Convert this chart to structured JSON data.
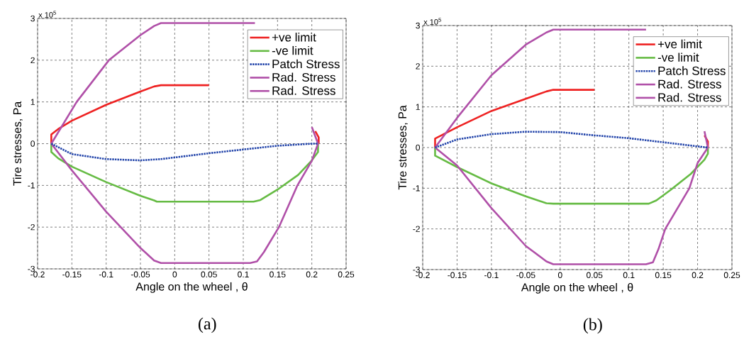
{
  "chart_data": [
    {
      "type": "line",
      "xlabel": "Angle on the wheel , θ",
      "ylabel": "Tire stresses, Pa",
      "xlim": [
        -0.2,
        0.25
      ],
      "ylim": [
        -3,
        3
      ],
      "xticks": [
        -0.2,
        -0.15,
        -0.1,
        -0.05,
        0,
        0.05,
        0.1,
        0.15,
        0.2,
        0.25
      ],
      "yticks": [
        -3,
        -2,
        -1,
        0,
        1,
        2,
        3
      ],
      "grid": true,
      "legend": "top right",
      "annotations": [
        "x 10$^{5}$",
        "(a)"
      ],
      "series": [
        {
          "name": "+ve limit",
          "color": "#ee2222",
          "line_style": "solid",
          "x": [
            -0.18,
            -0.18,
            -0.17,
            -0.15,
            -0.1,
            -0.05,
            -0.03,
            -0.02,
            0.05,
            0.12,
            0.205,
            0.21,
            0.21
          ],
          "values": [
            0,
            0.22,
            0.35,
            0.55,
            0.93,
            1.25,
            1.37,
            1.4,
            1.4,
            null,
            0.3,
            0.15,
            0
          ]
        },
        {
          "name": "-ve limit",
          "color": "#66bb44",
          "line_style": "solid",
          "x": [
            -0.18,
            -0.18,
            -0.17,
            -0.15,
            -0.1,
            -0.05,
            -0.03,
            -0.026,
            0.115,
            0.125,
            0.15,
            0.18,
            0.2,
            0.209,
            0.209
          ],
          "values": [
            0,
            -0.2,
            -0.35,
            -0.55,
            -0.92,
            -1.25,
            -1.36,
            -1.39,
            -1.39,
            -1.35,
            -1.1,
            -0.75,
            -0.4,
            -0.2,
            0
          ]
        },
        {
          "name": "Patch Stress",
          "color": "#2244aa",
          "line_style": "dotted",
          "x": [
            -0.18,
            -0.15,
            -0.1,
            -0.05,
            -0.02,
            0,
            0.05,
            0.1,
            0.15,
            0.2,
            0.209
          ],
          "values": [
            0,
            -0.25,
            -0.37,
            -0.4,
            -0.37,
            -0.33,
            -0.23,
            -0.14,
            -0.05,
            0,
            0
          ]
        },
        {
          "name": "Rad. Stress",
          "color": "#b050a8",
          "line_style": "solid",
          "x": [
            -0.18,
            -0.143,
            -0.096,
            -0.05,
            -0.03,
            -0.02,
            0.117,
            0.15,
            0.2,
            0.209
          ],
          "values": [
            0,
            1,
            2,
            2.6,
            2.82,
            2.89,
            2.89,
            null,
            0.4,
            0
          ]
        },
        {
          "name": "Rad. Stress",
          "color": "#b050a8",
          "line_style": "solid",
          "x": [
            -0.18,
            -0.15,
            -0.1,
            -0.05,
            -0.03,
            -0.02,
            0.11,
            0.12,
            0.13,
            0.152,
            0.179,
            0.2,
            0.209
          ],
          "values": [
            0,
            -0.64,
            -1.63,
            -2.5,
            -2.8,
            -2.86,
            -2.86,
            -2.82,
            -2.6,
            -2,
            -1,
            -0.41,
            0
          ]
        }
      ]
    },
    {
      "type": "line",
      "xlabel": "Angle on the wheel , θ",
      "ylabel": "Tire stresses, Pa",
      "xlim": [
        -0.2,
        0.25
      ],
      "ylim": [
        -3,
        3
      ],
      "xticks": [
        -0.2,
        -0.15,
        -0.1,
        -0.05,
        0,
        0.05,
        0.1,
        0.15,
        0.2,
        0.25
      ],
      "yticks": [
        -3,
        -2,
        -1,
        0,
        1,
        2,
        3
      ],
      "grid": true,
      "legend": "top right",
      "annotations": [
        "x 10$^{5}$",
        "(b)"
      ],
      "series": [
        {
          "name": "+ve limit",
          "color": "#ee2222",
          "line_style": "solid",
          "x": [
            -0.182,
            -0.182,
            -0.15,
            -0.1,
            -0.05,
            -0.02,
            -0.01,
            0.05,
            0.12,
            0.21,
            0.215,
            0.215
          ],
          "values": [
            0,
            0.22,
            0.5,
            0.9,
            1.2,
            1.38,
            1.42,
            1.42,
            null,
            0.3,
            0.15,
            0
          ]
        },
        {
          "name": "-ve limit",
          "color": "#66bb44",
          "line_style": "solid",
          "x": [
            -0.182,
            -0.182,
            -0.15,
            -0.1,
            -0.05,
            -0.02,
            -0.01,
            0.129,
            0.14,
            0.16,
            0.19,
            0.21,
            0.215,
            0.215
          ],
          "values": [
            0,
            -0.2,
            -0.48,
            -0.88,
            -1.2,
            -1.37,
            -1.38,
            -1.38,
            -1.3,
            -1.05,
            -0.65,
            -0.3,
            -0.15,
            0
          ]
        },
        {
          "name": "Patch Stress",
          "color": "#2244aa",
          "line_style": "dotted",
          "x": [
            -0.182,
            -0.15,
            -0.1,
            -0.05,
            0,
            0.05,
            0.1,
            0.15,
            0.2,
            0.215
          ],
          "values": [
            0,
            0.2,
            0.33,
            0.39,
            0.38,
            0.3,
            0.23,
            0.13,
            0.03,
            0
          ]
        },
        {
          "name": "Rad. Stress",
          "color": "#b050a8",
          "line_style": "solid",
          "x": [
            -0.182,
            -0.15,
            -0.1,
            -0.05,
            -0.02,
            -0.01,
            0.125,
            0.15,
            0.21,
            0.215
          ],
          "values": [
            0,
            0.73,
            1.78,
            2.53,
            2.83,
            2.9,
            2.9,
            null,
            0.4,
            0
          ]
        },
        {
          "name": "Rad. Stress",
          "color": "#b050a8",
          "line_style": "solid",
          "x": [
            -0.182,
            -0.15,
            -0.1,
            -0.05,
            -0.02,
            -0.01,
            0.125,
            0.135,
            0.143,
            0.153,
            0.188,
            0.2,
            0.215
          ],
          "values": [
            0,
            -0.44,
            -1.49,
            -2.42,
            -2.8,
            -2.87,
            -2.87,
            -2.82,
            -2.5,
            -2,
            -1,
            -0.38,
            0
          ]
        }
      ]
    }
  ]
}
